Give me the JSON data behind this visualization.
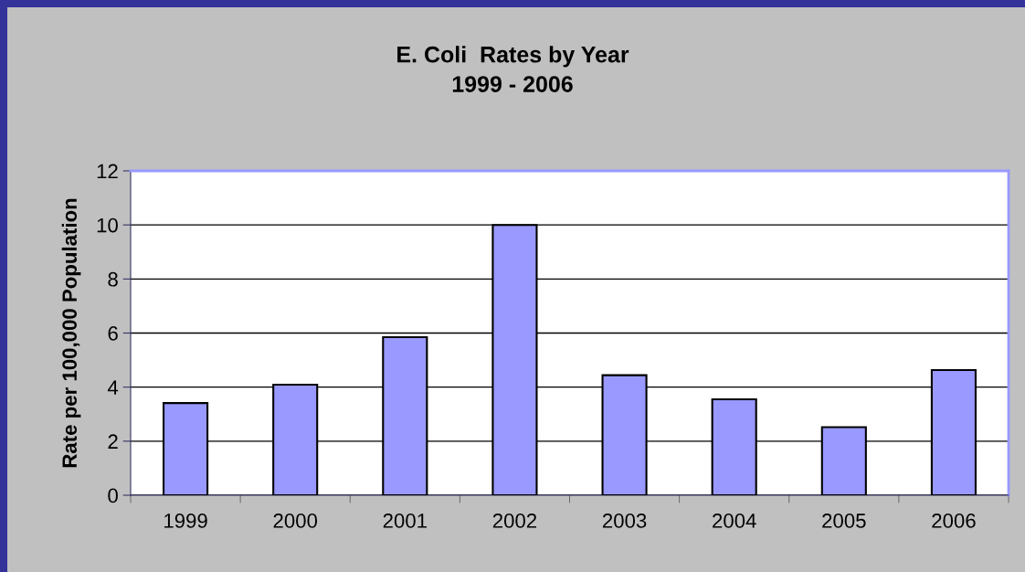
{
  "chart_data": {
    "type": "bar",
    "title": "E. Coli  Rates by Year\n1999 - 2006",
    "ylabel": "Rate per 100,000 Population",
    "categories": [
      "1999",
      "2000",
      "2001",
      "2002",
      "2003",
      "2004",
      "2005",
      "2006"
    ],
    "values": [
      3.41,
      4.09,
      5.85,
      10.0,
      4.44,
      3.55,
      2.52,
      4.63
    ],
    "color": "#9999ff",
    "ylim": [
      0,
      12
    ],
    "yticks": [
      0,
      2,
      4,
      6,
      8,
      10,
      12
    ],
    "grid": "y",
    "legend": false
  }
}
